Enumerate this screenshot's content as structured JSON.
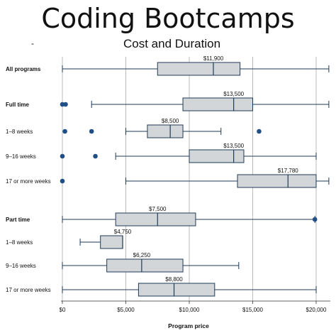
{
  "chart_data": {
    "type": "boxplot",
    "title": "Coding Bootcamps",
    "subtitle": "Cost and Duration",
    "xlabel": "Program price",
    "xlim": [
      0,
      20000
    ],
    "x_ticks": [
      0,
      5000,
      10000,
      15000,
      20000
    ],
    "x_tick_labels": [
      "$0",
      "$5,000",
      "$10,000",
      "$15,000",
      "$20,000"
    ],
    "grid": "vertical",
    "groups": [
      {
        "label": "All programs",
        "bold": true,
        "min": 0,
        "q1": 7500,
        "median": 11900,
        "q3": 14000,
        "max": 21000,
        "median_label": "$11,900",
        "outliers": []
      },
      {
        "label": "Full time",
        "bold": true,
        "min": 2300,
        "q1": 9500,
        "median": 13500,
        "q3": 15000,
        "max": 21000,
        "median_label": "$13,500",
        "outliers": [
          0,
          250
        ]
      },
      {
        "label": "1–8 weeks",
        "bold": false,
        "min": 5000,
        "q1": 6700,
        "median": 8500,
        "q3": 9500,
        "max": 12500,
        "median_label": "$8,500",
        "outliers": [
          200,
          2300,
          15500
        ]
      },
      {
        "label": "9–16 weeks",
        "bold": false,
        "min": 4200,
        "q1": 10000,
        "median": 13500,
        "q3": 14300,
        "max": 20000,
        "median_label": "$13,500",
        "outliers": [
          0,
          2600
        ]
      },
      {
        "label": "17 or more weeks",
        "bold": false,
        "min": 5000,
        "q1": 13800,
        "median": 17780,
        "q3": 20000,
        "max": 21000,
        "median_label": "$17,780",
        "outliers": [
          0
        ]
      },
      {
        "label": "Part time",
        "bold": true,
        "min": 0,
        "q1": 4200,
        "median": 7500,
        "q3": 10500,
        "max": 19900,
        "median_label": "$7,500",
        "outliers": [
          19900
        ]
      },
      {
        "label": "1–8 weeks",
        "bold": false,
        "min": 1400,
        "q1": 3000,
        "median": 4750,
        "q3": 4750,
        "max": 4750,
        "median_label": "$4,750",
        "outliers": []
      },
      {
        "label": "9–16 weeks",
        "bold": false,
        "min": 0,
        "q1": 3500,
        "median": 6250,
        "q3": 9500,
        "max": 13900,
        "median_label": "$6,250",
        "outliers": []
      },
      {
        "label": "17 or more weeks",
        "bold": false,
        "min": 0,
        "q1": 6000,
        "median": 8800,
        "q3": 12000,
        "max": 20000,
        "median_label": "$8,800",
        "outliers": []
      }
    ],
    "colors": {
      "box_fill": "#d3d6d8",
      "box_stroke": "#1d3a57",
      "whisker": "#1d3a57",
      "outlier": "#1f4f86",
      "grid": "#aaaaaa"
    }
  },
  "dash_mark": "-"
}
